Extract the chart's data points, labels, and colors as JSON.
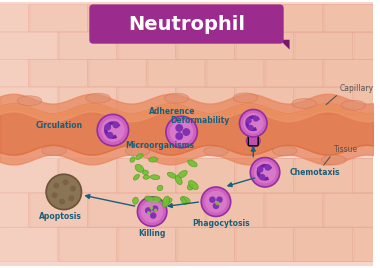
{
  "title": "Neutrophil",
  "title_bg": "#9b2c8e",
  "title_color": "#ffffff",
  "bg_color": "#f7d6cc",
  "border_color": "#e8a898",
  "capillary_top_color": "#e8845a",
  "capillary_main_color": "#e07040",
  "capillary_bottom_color": "#e8845a",
  "tissue_bg": "#f5c8b8",
  "cell_outer": "#c040a0",
  "cell_inner": "#8030b0",
  "cell_nucleus": "#9040c0",
  "rbc_color": "#e05030",
  "label_color": "#1a5f7a",
  "microorganism_color": "#70c030",
  "apoptosis_color": "#8b7355",
  "arrow_color": "#1a5f7a",
  "labels": {
    "capillary": "Capillary",
    "circulation": "Circulation",
    "adherence": "Adherence",
    "deformability": "Deformability",
    "microorganisms": "Microorganisms",
    "chemotaxis": "Chemotaxis",
    "phagocytosis": "Phagocytosis",
    "killing": "Killing",
    "apoptosis": "Apoptosis",
    "tissue": "Tissue"
  }
}
